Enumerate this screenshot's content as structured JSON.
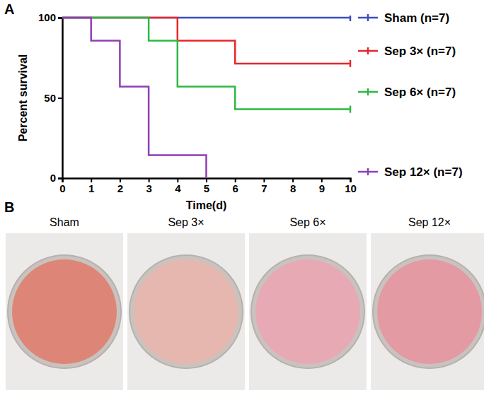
{
  "chart_data": {
    "type": "line",
    "annotations": [
      "A"
    ],
    "x_label": "Time(d)",
    "y_label": "Percent survival",
    "x": [
      0,
      1,
      2,
      3,
      4,
      5,
      6,
      7,
      8,
      9,
      10
    ],
    "series": [
      {
        "name": "Sham (n=7)",
        "color": "#3b4cc0",
        "values": [
          100,
          100,
          100,
          100,
          100,
          100,
          100,
          100,
          100,
          100,
          100
        ]
      },
      {
        "name": "Sep 3× (n=7)",
        "color": "#e8262a",
        "values": [
          100,
          100,
          100,
          100,
          85.7,
          85.7,
          71.4,
          71.4,
          71.4,
          71.4,
          71.4
        ]
      },
      {
        "name": "Sep 6× (n=7)",
        "color": "#2db843",
        "values": [
          100,
          100,
          100,
          85.7,
          57.1,
          57.1,
          42.9,
          42.9,
          42.9,
          42.9,
          42.9
        ]
      },
      {
        "name": "Sep 12× (n=7)",
        "color": "#8e3fb5",
        "values": [
          100,
          85.7,
          57.1,
          14.3,
          14.3,
          0,
          null,
          null,
          null,
          null,
          null
        ]
      }
    ],
    "xlim": [
      0,
      10
    ],
    "ylim": [
      0,
      100
    ],
    "xticks": [
      0,
      1,
      2,
      3,
      4,
      5,
      6,
      7,
      8,
      9,
      10
    ],
    "yticks": [
      0,
      50,
      100
    ],
    "line_style": "step",
    "marker": "censor",
    "legend": "right"
  },
  "panel_b": {
    "label": "B",
    "plates": [
      "Sham",
      "Sep 3×",
      "Sep 6×",
      "Sep 12×"
    ]
  }
}
